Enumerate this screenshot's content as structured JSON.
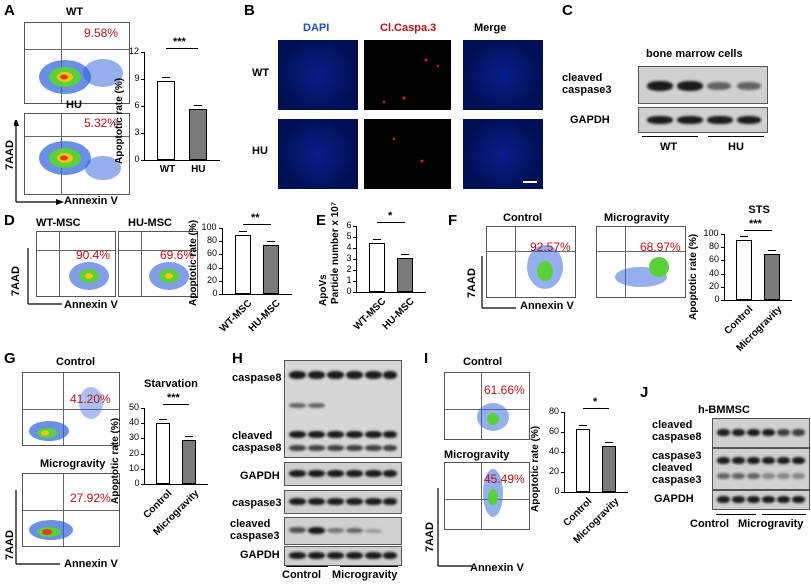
{
  "panels": {
    "A": {
      "letter": "A",
      "wt": "WT",
      "hu": "HU",
      "wt_pct": "9.58%",
      "hu_pct": "5.32%",
      "y_axis": "7AAD",
      "x_axis": "Annexin V",
      "chart": {
        "ylabel": "Apoptotic rate (%)",
        "yticks": [
          "0",
          "3",
          "6",
          "9",
          "12"
        ],
        "cats": [
          "WT",
          "HU"
        ],
        "sig": "***",
        "values": [
          8.8,
          5.7
        ],
        "ymax": 12
      }
    },
    "B": {
      "letter": "B",
      "cols": [
        "DAPI",
        "Cl.Caspa.3",
        "Merge"
      ],
      "rows": [
        "WT",
        "HU"
      ]
    },
    "C": {
      "letter": "C",
      "title": "bone marrow cells",
      "bands": [
        "cleaved caspase3",
        "GAPDH"
      ],
      "groups": [
        "WT",
        "HU"
      ]
    },
    "D": {
      "letter": "D",
      "titles": [
        "WT-MSC",
        "HU-MSC"
      ],
      "pcts": [
        "90.4%",
        "69.6%"
      ],
      "y_axis": "7AAD",
      "x_axis": "Annexin V",
      "chart": {
        "ylabel": "Apoptotic rate (%)",
        "yticks": [
          "0",
          "20",
          "40",
          "60",
          "80",
          "100"
        ],
        "cats": [
          "WT-MSC",
          "HU-MSC"
        ],
        "sig": "**",
        "values": [
          89,
          74
        ],
        "ymax": 100
      }
    },
    "E": {
      "letter": "E",
      "chart": {
        "ylabel": "ApoVs",
        "ylabel2": "Particle number x 10⁷",
        "yticks": [
          "0",
          "1",
          "2",
          "3",
          "4",
          "5",
          "6"
        ],
        "cats": [
          "WT-MSC",
          "HU-MSC"
        ],
        "sig": "*",
        "values": [
          4.5,
          3.1
        ],
        "ymax": 6
      }
    },
    "F": {
      "letter": "F",
      "titles": [
        "Control",
        "Microgravity"
      ],
      "pcts": [
        "92.57%",
        "68.97%"
      ],
      "y_axis": "7AAD",
      "x_axis": "Annexin V",
      "chart": {
        "title": "STS",
        "ylabel": "Apoptotic rate (%)",
        "yticks": [
          "0",
          "20",
          "40",
          "60",
          "80",
          "100"
        ],
        "cats": [
          "Control",
          "Microgravity"
        ],
        "sig": "***",
        "values": [
          91,
          69
        ],
        "ymax": 100
      }
    },
    "G": {
      "letter": "G",
      "titles": [
        "Control",
        "Microgravity"
      ],
      "pcts": [
        "41.20%",
        "27.92%"
      ],
      "y_axis": "7AAD",
      "x_axis": "Annexin V",
      "chart": {
        "title": "Starvation",
        "ylabel": "Apoptotic rate (%)",
        "yticks": [
          "0",
          "10",
          "20",
          "30",
          "40",
          "50"
        ],
        "cats": [
          "Control",
          "Microgravity"
        ],
        "sig": "***",
        "values": [
          40,
          29
        ],
        "ymax": 50
      }
    },
    "H": {
      "letter": "H",
      "bands": [
        "caspase8",
        "cleaved caspase8",
        "GAPDH",
        "caspase3",
        "cleaved caspase3",
        "GAPDH"
      ],
      "groups": [
        "Control",
        "Microgravity"
      ]
    },
    "I": {
      "letter": "I",
      "titles": [
        "Control",
        "Microgravity"
      ],
      "pcts": [
        "61.66%",
        "45.49%"
      ],
      "y_axis": "7AAD",
      "x_axis": "Annexin V",
      "chart": {
        "ylabel": "Apoptotic rate (%)",
        "yticks": [
          "0",
          "20",
          "40",
          "60",
          "80"
        ],
        "cats": [
          "Control",
          "Microgravity"
        ],
        "sig": "*",
        "values": [
          63,
          46
        ],
        "ymax": 80
      }
    },
    "J": {
      "letter": "J",
      "title": "h-BMMSC",
      "bands": [
        "cleaved caspase8",
        "caspase3",
        "cleaved caspase3",
        "GAPDH"
      ],
      "groups": [
        "Control",
        "Microgravity"
      ]
    }
  },
  "chart_data": [
    {
      "type": "bar",
      "panel": "A",
      "categories": [
        "WT",
        "HU"
      ],
      "values": [
        8.8,
        5.7
      ],
      "ylabel": "Apoptotic rate (%)",
      "ylim": [
        0,
        12
      ]
    },
    {
      "type": "bar",
      "panel": "D",
      "categories": [
        "WT-MSC",
        "HU-MSC"
      ],
      "values": [
        89,
        74
      ],
      "ylabel": "Apoptotic rate (%)",
      "ylim": [
        0,
        100
      ]
    },
    {
      "type": "bar",
      "panel": "E",
      "categories": [
        "WT-MSC",
        "HU-MSC"
      ],
      "values": [
        4.5,
        3.1
      ],
      "ylabel": "ApoVs Particle number x 10⁷",
      "ylim": [
        0,
        6
      ]
    },
    {
      "type": "bar",
      "panel": "F",
      "title": "STS",
      "categories": [
        "Control",
        "Microgravity"
      ],
      "values": [
        91,
        69
      ],
      "ylabel": "Apoptotic rate (%)",
      "ylim": [
        0,
        100
      ]
    },
    {
      "type": "bar",
      "panel": "G",
      "title": "Starvation",
      "categories": [
        "Control",
        "Microgravity"
      ],
      "values": [
        40,
        29
      ],
      "ylabel": "Apoptotic rate (%)",
      "ylim": [
        0,
        50
      ]
    },
    {
      "type": "bar",
      "panel": "I",
      "categories": [
        "Control",
        "Microgravity"
      ],
      "values": [
        63,
        46
      ],
      "ylabel": "Apoptotic rate (%)",
      "ylim": [
        0,
        80
      ]
    }
  ]
}
